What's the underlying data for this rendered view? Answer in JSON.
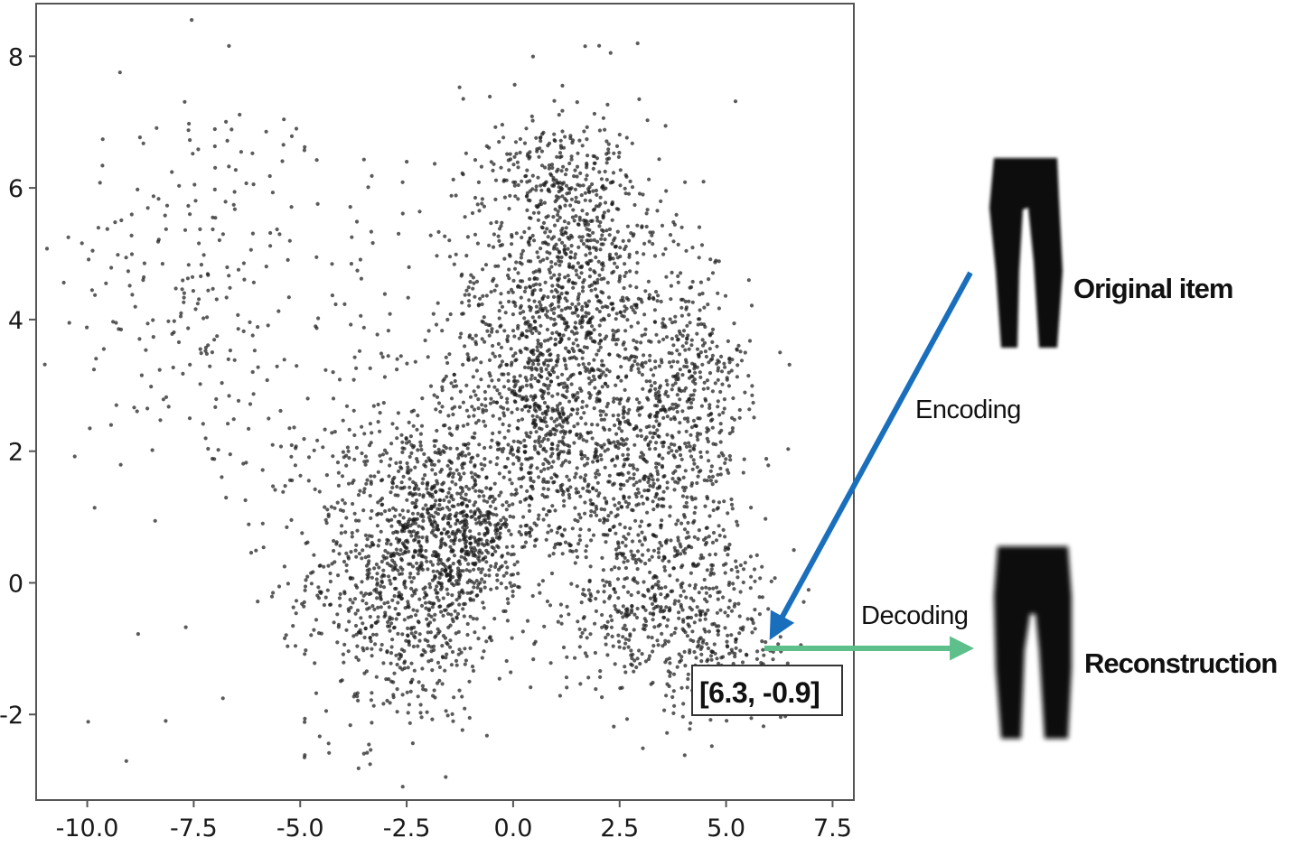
{
  "chart_data": {
    "type": "scatter",
    "title": "",
    "xlabel": "",
    "ylabel": "",
    "xlim": [
      -11.2,
      8.0
    ],
    "ylim": [
      -3.3,
      8.8
    ],
    "xticks": [
      "-10.0",
      "-7.5",
      "-5.0",
      "-2.5",
      "0.0",
      "2.5",
      "5.0",
      "7.5"
    ],
    "xtick_values": [
      -10.0,
      -7.5,
      -5.0,
      -2.5,
      0.0,
      2.5,
      5.0,
      7.5
    ],
    "yticks": [
      "-2",
      "0",
      "2",
      "4",
      "6",
      "8"
    ],
    "ytick_values": [
      -2,
      0,
      2,
      4,
      6,
      8
    ],
    "grid": false,
    "point_color": "#1c1c1c",
    "clusters": [
      {
        "cx": -7.5,
        "cy": 4.6,
        "sx": 1.6,
        "sy": 1.6,
        "n": 200
      },
      {
        "cx": -2.6,
        "cy": 0.2,
        "sx": 1.1,
        "sy": 1.2,
        "n": 900
      },
      {
        "cx": -1.5,
        "cy": 0.9,
        "sx": 0.6,
        "sy": 0.9,
        "n": 350
      },
      {
        "cx": -0.6,
        "cy": 0.7,
        "sx": 0.4,
        "sy": 0.5,
        "n": 150
      },
      {
        "cx": -0.8,
        "cy": 3.8,
        "sx": 0.4,
        "sy": 1.5,
        "n": 150
      },
      {
        "cx": 1.6,
        "cy": 4.7,
        "sx": 1.0,
        "sy": 1.2,
        "n": 800
      },
      {
        "cx": 0.6,
        "cy": 2.6,
        "sx": 0.6,
        "sy": 1.0,
        "n": 450
      },
      {
        "cx": 2.8,
        "cy": 1.6,
        "sx": 1.2,
        "sy": 1.2,
        "n": 800
      },
      {
        "cx": 4.2,
        "cy": 3.0,
        "sx": 0.7,
        "sy": 0.9,
        "n": 300
      },
      {
        "cx": 3.8,
        "cy": -0.4,
        "sx": 1.3,
        "sy": 0.6,
        "n": 400
      },
      {
        "cx": 5.0,
        "cy": -1.4,
        "sx": 0.8,
        "sy": 0.4,
        "n": 120
      },
      {
        "cx": 0.7,
        "cy": 6.2,
        "sx": 0.6,
        "sy": 0.4,
        "n": 120
      },
      {
        "cx": -3.0,
        "cy": 2.5,
        "sx": 2.5,
        "sy": 2.6,
        "n": 250
      }
    ],
    "highlighted_point": {
      "x": 6.3,
      "y": -0.9,
      "label": "[6.3, -0.9]"
    }
  },
  "diagram": {
    "original_label": "Original item",
    "reconstruction_label": "Reconstruction",
    "encoding_label": "Encoding",
    "decoding_label": "Decoding",
    "encoding_color": "#1a6fbd",
    "decoding_color": "#5dbf8a"
  }
}
